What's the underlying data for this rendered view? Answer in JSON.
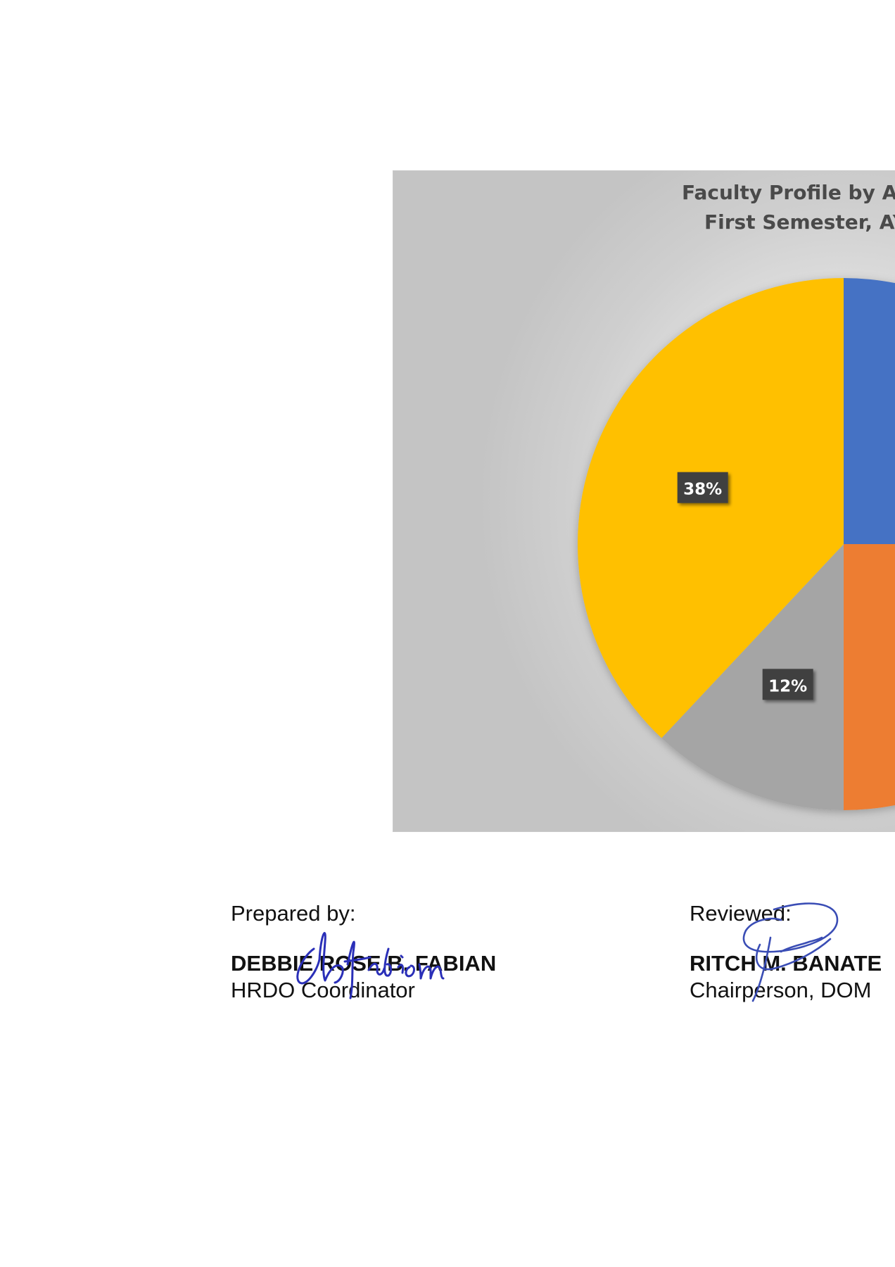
{
  "chart_data": {
    "type": "pie",
    "title_lines": [
      "Faculty Profile by Ac",
      "First Semester, AY"
    ],
    "slices": [
      {
        "label": "",
        "value": 25,
        "data_label": "",
        "color": "#4472C4"
      },
      {
        "label": "",
        "value": 25,
        "data_label": "",
        "color": "#ED7D31"
      },
      {
        "label": "",
        "value": 12,
        "data_label": "12%",
        "color": "#A5A5A5"
      },
      {
        "label": "",
        "value": 38,
        "data_label": "38%",
        "color": "#FFC000"
      }
    ]
  },
  "signatories": [
    {
      "label": "Prepared by:",
      "name": "DEBBIE ROSE B. FABIAN",
      "title": "HRDO Coordinator"
    },
    {
      "label": "Reviewed:",
      "name": "RITCH M. BANATE",
      "title": "Chairperson, DOM"
    }
  ]
}
